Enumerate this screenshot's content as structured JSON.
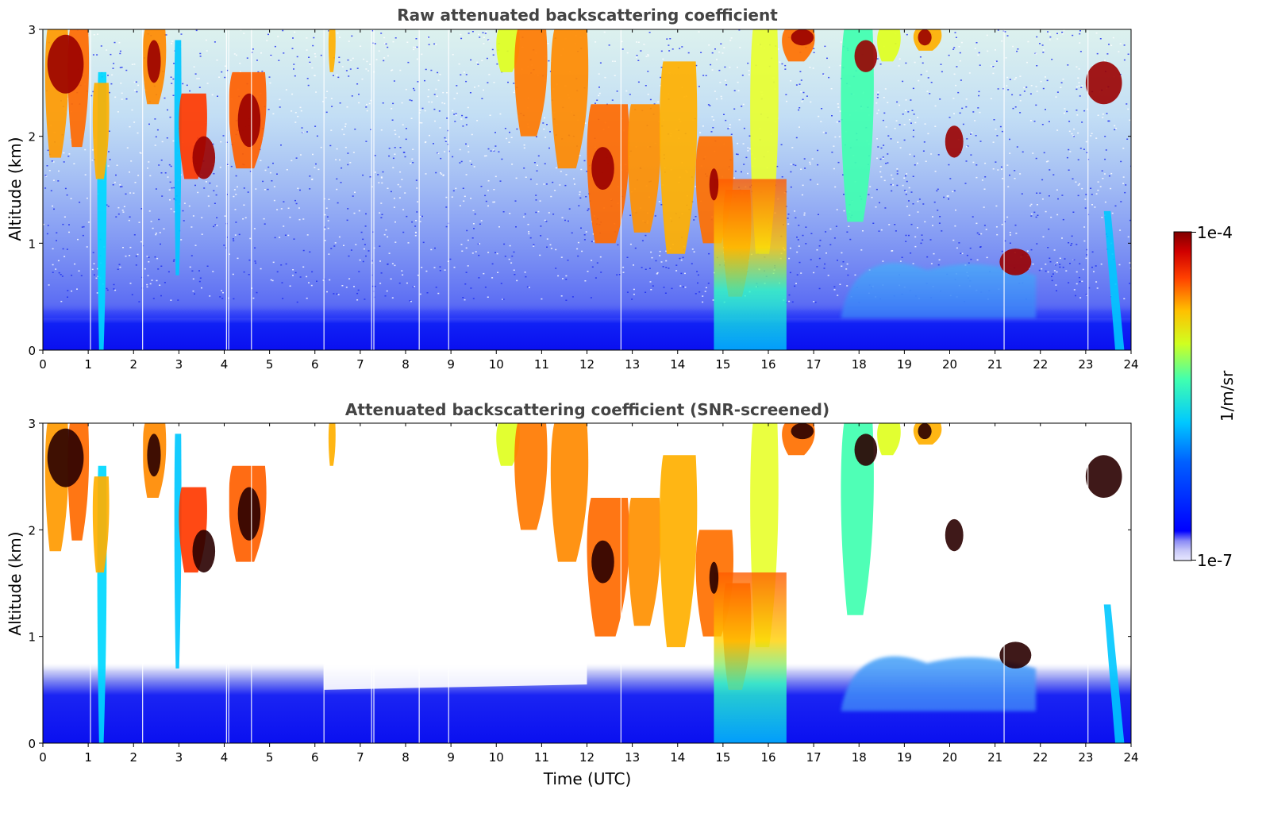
{
  "chart_data": [
    {
      "type": "heatmap",
      "title": "Raw attenuated backscattering coefficient",
      "xlabel": "",
      "ylabel": "Altitude (km)",
      "xlim": [
        0,
        24
      ],
      "ylim": [
        0,
        3
      ],
      "xticks": [
        "0",
        "1",
        "2",
        "3",
        "4",
        "5",
        "6",
        "7",
        "8",
        "9",
        "10",
        "11",
        "12",
        "13",
        "14",
        "15",
        "16",
        "17",
        "18",
        "19",
        "20",
        "21",
        "22",
        "23",
        "24"
      ],
      "yticks": [
        "0",
        "1",
        "2",
        "3"
      ],
      "screened": false,
      "features": [
        {
          "name": "boundary layer aerosol",
          "t_start": 0,
          "t_end": 24,
          "alt_top": 0.4,
          "level": "low"
        },
        {
          "name": "cirrus clouds",
          "t_start": 0,
          "t_end": 6,
          "alt_min": 1.5,
          "alt_max": 3,
          "level": "high"
        },
        {
          "name": "thick cloud layer",
          "t_start": 10,
          "t_end": 16.5,
          "alt_min": 0.5,
          "alt_max": 3,
          "level": "high"
        },
        {
          "name": "lofted aerosol layer",
          "t_start": 17.5,
          "t_end": 22,
          "alt_min": 0.3,
          "alt_max": 0.9,
          "level": "medium"
        },
        {
          "name": "isolated cloud",
          "t_start": 19.9,
          "t_end": 20.3,
          "alt_min": 1.8,
          "alt_max": 2.1,
          "level": "high"
        },
        {
          "name": "cloud",
          "t_start": 23,
          "t_end": 23.9,
          "alt_min": 2.2,
          "alt_max": 2.7,
          "level": "high"
        }
      ]
    },
    {
      "type": "heatmap",
      "title": "Attenuated backscattering coefficient (SNR-screened)",
      "xlabel": "Time (UTC)",
      "ylabel": "Altitude (km)",
      "xlim": [
        0,
        24
      ],
      "ylim": [
        0,
        3
      ],
      "xticks": [
        "0",
        "1",
        "2",
        "3",
        "4",
        "5",
        "6",
        "7",
        "8",
        "9",
        "10",
        "11",
        "12",
        "13",
        "14",
        "15",
        "16",
        "17",
        "18",
        "19",
        "20",
        "21",
        "22",
        "23",
        "24"
      ],
      "yticks": [
        "0",
        "1",
        "2",
        "3"
      ],
      "screened": true
    }
  ],
  "colorbar": {
    "label": "1/m/sr",
    "max_label": "1e-4",
    "min_label": "1e-7",
    "scale": "log"
  },
  "colors": {
    "background": "#ffffff",
    "title_color": "#444444",
    "low": "#0a14f0",
    "high": "#8b0000"
  }
}
